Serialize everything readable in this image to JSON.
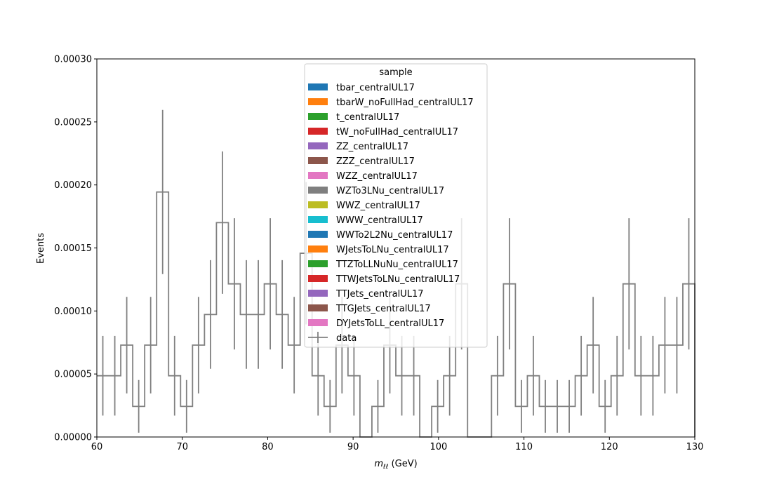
{
  "chart_data": {
    "type": "line",
    "xlabel_main": "m",
    "xlabel_sub": "ℓℓ",
    "xlabel_unit": " (GeV)",
    "ylabel": "Events",
    "xlim": [
      60,
      130
    ],
    "ylim": [
      0,
      0.0003
    ],
    "grid": false,
    "x_ticks": [
      60,
      70,
      80,
      90,
      100,
      110,
      120,
      130
    ],
    "y_ticks": [
      0.0,
      5e-05,
      0.0001,
      0.00015,
      0.0002,
      0.00025,
      0.0003
    ],
    "y_tick_labels": [
      "0.00000",
      "0.00005",
      "0.00010",
      "0.00015",
      "0.00020",
      "0.00025",
      "0.00030"
    ],
    "legend": {
      "title": "sample",
      "placement": "upper center",
      "entries": [
        {
          "label": "tbar_centralUL17",
          "color": "#1f77b4"
        },
        {
          "label": "tbarW_noFullHad_centralUL17",
          "color": "#ff7f0e"
        },
        {
          "label": "t_centralUL17",
          "color": "#2ca02c"
        },
        {
          "label": "tW_noFullHad_centralUL17",
          "color": "#d62728"
        },
        {
          "label": "ZZ_centralUL17",
          "color": "#9467bd"
        },
        {
          "label": "ZZZ_centralUL17",
          "color": "#8c564b"
        },
        {
          "label": "WZZ_centralUL17",
          "color": "#e377c2"
        },
        {
          "label": "WZTo3LNu_centralUL17",
          "color": "#7f7f7f"
        },
        {
          "label": "WWZ_centralUL17",
          "color": "#bcbd22"
        },
        {
          "label": "WWW_centralUL17",
          "color": "#17becf"
        },
        {
          "label": "WWTo2L2Nu_centralUL17",
          "color": "#1f77b4"
        },
        {
          "label": "WJetsToLNu_centralUL17",
          "color": "#ff7f0e"
        },
        {
          "label": "TTZToLLNuNu_centralUL17",
          "color": "#2ca02c"
        },
        {
          "label": "TTWJetsToLNu_centralUL17",
          "color": "#d62728"
        },
        {
          "label": "TTJets_centralUL17",
          "color": "#9467bd"
        },
        {
          "label": "TTGJets_centralUL17",
          "color": "#8c564b"
        },
        {
          "label": "DYJetsToLL_centralUL17",
          "color": "#e377c2"
        }
      ],
      "data_entry": {
        "label": "data",
        "color": "#808080"
      }
    },
    "series": [
      {
        "name": "data",
        "color": "#808080",
        "bin_edges": [
          60.0,
          61.4,
          62.8,
          64.2,
          65.6,
          67.0,
          68.4,
          69.8,
          71.2,
          72.6,
          74.0,
          75.4,
          76.8,
          78.2,
          79.6,
          81.0,
          82.4,
          83.8,
          85.2,
          86.6,
          88.0,
          89.4,
          90.8,
          92.2,
          93.6,
          95.0,
          96.4,
          97.8,
          99.2,
          100.6,
          102.0,
          103.4,
          104.8,
          106.2,
          107.6,
          109.0,
          110.4,
          111.8,
          113.2,
          114.6,
          116.0,
          117.4,
          118.8,
          120.2,
          121.6,
          123.0,
          124.4,
          125.8,
          127.2,
          128.6,
          130.0
        ],
        "values": [
          4.86e-05,
          4.86e-05,
          7.29e-05,
          2.43e-05,
          7.29e-05,
          0.0001944,
          4.86e-05,
          2.43e-05,
          7.29e-05,
          9.72e-05,
          0.0001701,
          0.0001215,
          9.72e-05,
          9.72e-05,
          0.0001215,
          9.72e-05,
          7.29e-05,
          0.0001458,
          4.86e-05,
          2.43e-05,
          7.29e-05,
          4.86e-05,
          0.0,
          2.43e-05,
          7.29e-05,
          4.86e-05,
          4.86e-05,
          0.0,
          2.43e-05,
          4.86e-05,
          0.0001215,
          0.0,
          0.0,
          4.86e-05,
          0.0001215,
          2.43e-05,
          4.86e-05,
          2.43e-05,
          2.43e-05,
          2.43e-05,
          4.86e-05,
          7.29e-05,
          2.43e-05,
          4.86e-05,
          0.0001215,
          4.86e-05,
          4.86e-05,
          7.29e-05,
          7.29e-05,
          0.0001215
        ],
        "errors": [
          3.16e-05,
          3.16e-05,
          3.83e-05,
          2.09e-05,
          3.83e-05,
          6.51e-05,
          3.16e-05,
          2.09e-05,
          3.83e-05,
          4.31e-05,
          5.65e-05,
          5.21e-05,
          4.31e-05,
          4.31e-05,
          5.21e-05,
          4.31e-05,
          3.83e-05,
          5.65e-05,
          3.16e-05,
          2.09e-05,
          3.83e-05,
          3.16e-05,
          0.0,
          2.09e-05,
          3.83e-05,
          3.16e-05,
          3.16e-05,
          0.0,
          2.09e-05,
          3.16e-05,
          5.21e-05,
          0.0,
          0.0,
          3.16e-05,
          5.21e-05,
          2.09e-05,
          3.16e-05,
          2.09e-05,
          2.09e-05,
          2.09e-05,
          3.16e-05,
          3.83e-05,
          2.09e-05,
          3.16e-05,
          5.21e-05,
          3.16e-05,
          3.16e-05,
          3.83e-05,
          3.83e-05,
          5.21e-05
        ]
      }
    ]
  }
}
